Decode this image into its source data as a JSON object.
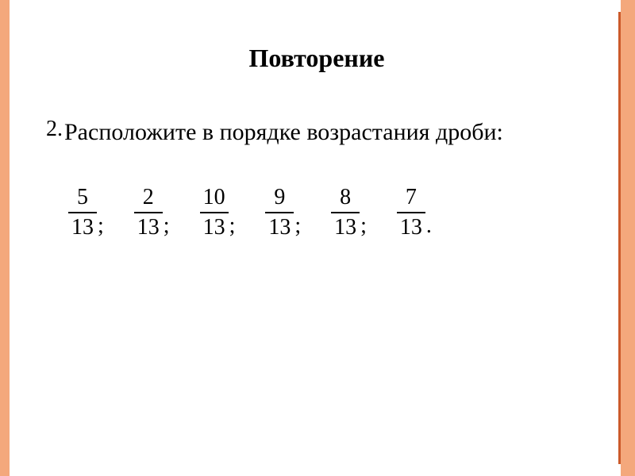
{
  "title": "Повторение",
  "task": {
    "number": "2.",
    "text": " Расположите в порядке возрастания дроби:"
  },
  "fractions": [
    {
      "numerator": "5",
      "denominator": "13",
      "separator": ";"
    },
    {
      "numerator": "2",
      "denominator": "13",
      "separator": ";"
    },
    {
      "numerator": "10",
      "denominator": "13",
      "separator": ";"
    },
    {
      "numerator": "9",
      "denominator": "13",
      "separator": ";"
    },
    {
      "numerator": "8",
      "denominator": "13",
      "separator": ";"
    },
    {
      "numerator": "7",
      "denominator": "13",
      "separator": "."
    }
  ],
  "colors": {
    "border_light": "#f4a87c",
    "border_dark": "#cc5a2a",
    "text": "#000000",
    "background": "#ffffff"
  }
}
